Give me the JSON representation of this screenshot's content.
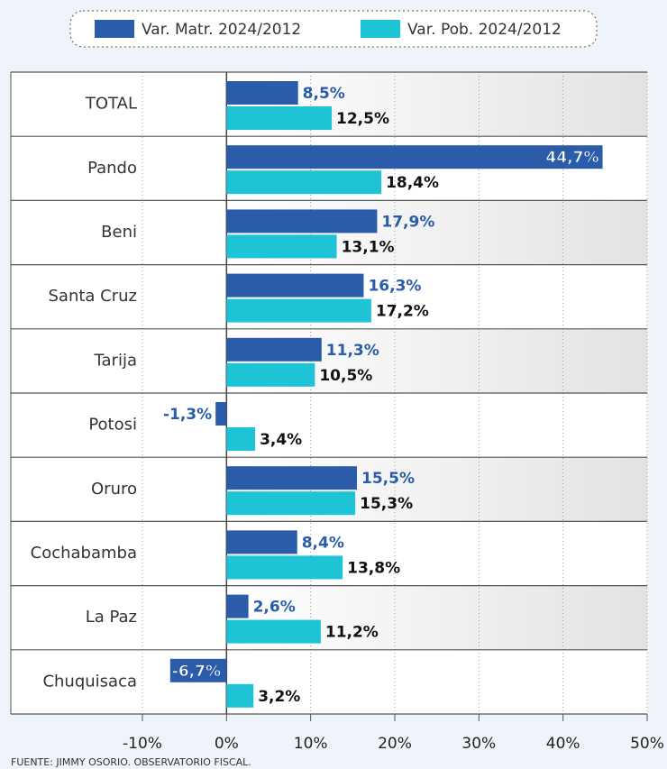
{
  "chart_data": {
    "type": "bar",
    "orientation": "horizontal",
    "categories": [
      "TOTAL",
      "Pando",
      "Beni",
      "Santa Cruz",
      "Tarija",
      "Potosi",
      "Oruro",
      "Cochabamba",
      "La Paz",
      "Chuquisaca"
    ],
    "series": [
      {
        "name": "Var. Matr. 2024/2012",
        "color": "#2a5caa",
        "values": [
          8.5,
          44.7,
          17.9,
          16.3,
          11.3,
          -1.3,
          15.5,
          8.4,
          2.6,
          -6.7
        ],
        "value_labels": [
          "8,5%",
          "44,7%",
          "17,9%",
          "16,3%",
          "11,3%",
          "-1,3%",
          "15,5%",
          "8,4%",
          "2,6%",
          "-6,7%"
        ]
      },
      {
        "name": "Var. Pob. 2024/2012",
        "color": "#1ec3d6",
        "values": [
          12.5,
          18.4,
          13.1,
          17.2,
          10.5,
          3.4,
          15.3,
          13.8,
          11.2,
          3.2
        ],
        "value_labels": [
          "12,5%",
          "18,4%",
          "13,1%",
          "17,2%",
          "10,5%",
          "3,4%",
          "15,3%",
          "13,8%",
          "11,2%",
          "3,2%"
        ]
      }
    ],
    "xlim": [
      -10,
      50
    ],
    "xticks": [
      {
        "value": -10,
        "label": "-10%"
      },
      {
        "value": 0,
        "label": "0%"
      },
      {
        "value": 10,
        "label": "10%"
      },
      {
        "value": 20,
        "label": "20%"
      },
      {
        "value": 30,
        "label": "30%"
      },
      {
        "value": 40,
        "label": "40%"
      },
      {
        "value": 50,
        "label": "50%"
      }
    ],
    "grid": true,
    "source": "FUENTE: JIMMY OSORIO. OBSERVATORIO FISCAL."
  }
}
